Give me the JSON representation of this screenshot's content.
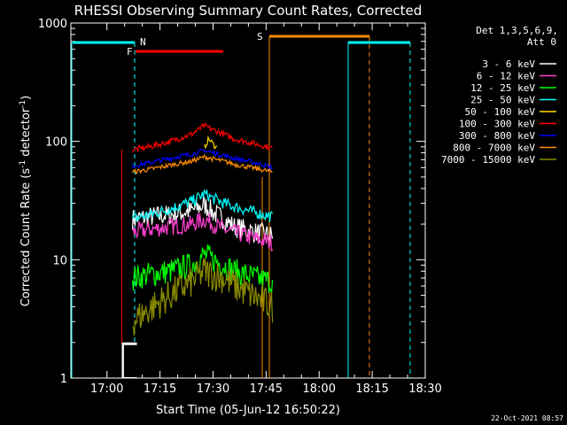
{
  "chart_data": {
    "type": "line",
    "title": "RHESSI Observing Summary Count Rates, Corrected",
    "xlabel": "Start Time (05-Jun-12 16:50:22)",
    "ylabel_main": "Corrected Count Rate (s",
    "ylabel_sup1": "-1",
    "ylabel_mid": " detector",
    "ylabel_sup2": "-1",
    "ylabel_end": ")",
    "yscale": "log",
    "ylim": [
      1,
      1000
    ],
    "xlim_minutes": [
      16.83,
      18.5
    ],
    "x_ticks": [
      "17:00",
      "17:15",
      "17:30",
      "17:45",
      "18:00",
      "18:15",
      "18:30"
    ],
    "x_tick_values": [
      17.0,
      17.25,
      17.5,
      17.75,
      18.0,
      18.25,
      18.5
    ],
    "y_ticks": [
      "1",
      "10",
      "100",
      "1000"
    ],
    "y_tick_values": [
      1,
      10,
      100,
      1000
    ],
    "legend_title": "Det 1,3,5,6,9,",
    "legend_subtitle": "Att 0",
    "series": [
      {
        "name": "3 - 6 keV",
        "color": "#ffffff",
        "x": [
          17.12,
          17.2,
          17.3,
          17.4,
          17.46,
          17.5,
          17.55,
          17.6,
          17.7,
          17.78
        ],
        "values": [
          22,
          23,
          24,
          26,
          29,
          25,
          22,
          19,
          17,
          16
        ]
      },
      {
        "name": "6 - 12 keV",
        "color": "#ff3fd0",
        "x": [
          17.12,
          17.2,
          17.3,
          17.4,
          17.46,
          17.5,
          17.55,
          17.6,
          17.7,
          17.78
        ],
        "values": [
          17,
          18,
          19,
          20,
          22,
          20,
          18,
          17,
          15,
          14
        ]
      },
      {
        "name": "12 - 25 keV",
        "color": "#00ff00",
        "x": [
          17.12,
          17.2,
          17.3,
          17.4,
          17.46,
          17.5,
          17.55,
          17.6,
          17.7,
          17.78
        ],
        "values": [
          7,
          7.5,
          8,
          9,
          11,
          10,
          9,
          8,
          7,
          6.5
        ]
      },
      {
        "name": "25 - 50 keV",
        "color": "#00ffff",
        "x": [
          17.12,
          17.2,
          17.3,
          17.4,
          17.46,
          17.5,
          17.55,
          17.6,
          17.7,
          17.78
        ],
        "values": [
          22,
          24,
          27,
          31,
          36,
          33,
          30,
          28,
          25,
          23
        ]
      },
      {
        "name": "50 - 100 keV",
        "color": "#ffd700",
        "x": [
          17.46,
          17.48,
          17.5,
          17.52
        ],
        "values": [
          90,
          105,
          95,
          88
        ]
      },
      {
        "name": "100 - 300 keV",
        "color": "#ff0000",
        "x": [
          17.12,
          17.2,
          17.3,
          17.4,
          17.46,
          17.5,
          17.55,
          17.6,
          17.7,
          17.78
        ],
        "values": [
          85,
          90,
          100,
          115,
          135,
          125,
          115,
          105,
          95,
          88
        ]
      },
      {
        "name": "300 - 800 keV",
        "color": "#0000ff",
        "x": [
          17.12,
          17.2,
          17.3,
          17.4,
          17.46,
          17.5,
          17.55,
          17.6,
          17.7,
          17.78
        ],
        "values": [
          62,
          66,
          72,
          78,
          84,
          80,
          76,
          72,
          66,
          60
        ]
      },
      {
        "name": "800 - 7000 keV",
        "color": "#ff8c00",
        "x": [
          17.12,
          17.2,
          17.3,
          17.4,
          17.46,
          17.5,
          17.55,
          17.6,
          17.7,
          17.78
        ],
        "values": [
          55,
          58,
          63,
          68,
          74,
          71,
          68,
          64,
          59,
          55
        ]
      },
      {
        "name": "7000 - 15000 keV",
        "color": "#8b8b00",
        "x": [
          17.12,
          17.2,
          17.3,
          17.4,
          17.46,
          17.5,
          17.55,
          17.6,
          17.7,
          17.78
        ],
        "values": [
          3,
          3.8,
          5,
          6.5,
          8,
          7.5,
          7,
          6,
          4.8,
          4
        ]
      }
    ],
    "flags": [
      {
        "label": "N",
        "color": "#00ffff"
      },
      {
        "label": "F",
        "color": "#ff0000"
      },
      {
        "label": "S",
        "color": "#ff8c00"
      }
    ],
    "timestamp": "22-Oct-2021 08:57"
  }
}
